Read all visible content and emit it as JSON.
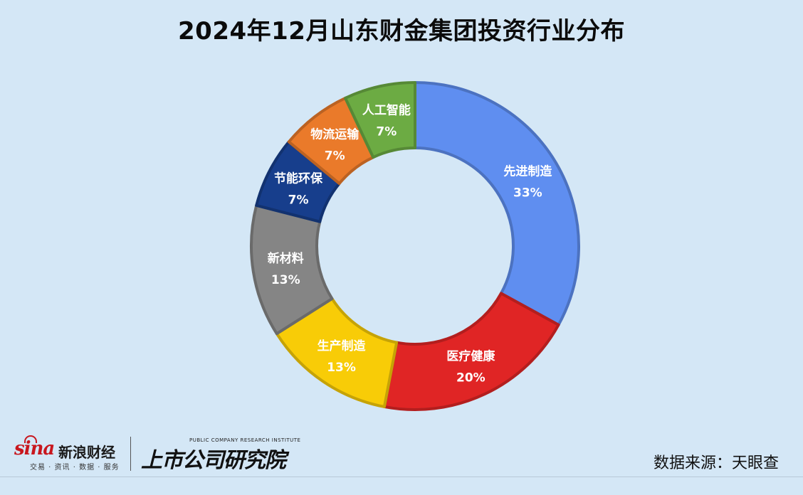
{
  "chart_data": {
    "type": "pie",
    "donut": true,
    "title": "2024年12月山东财金集团投资行业分布",
    "unit": "%",
    "categories": [
      "先进制造",
      "医疗健康",
      "生产制造",
      "新材料",
      "节能环保",
      "物流运输",
      "人工智能"
    ],
    "values": [
      33,
      20,
      13,
      13,
      7,
      7,
      7
    ],
    "labels": [
      "33%",
      "20%",
      "13%",
      "13%",
      "7%",
      "7%",
      "7%"
    ],
    "colors": [
      "#5f8ef0",
      "#e02525",
      "#f8cc07",
      "#858585",
      "#173e8c",
      "#ea7a2a",
      "#6cab43"
    ],
    "start_angle": 0,
    "direction": "clockwise"
  },
  "footer": {
    "source": "数据来源：天眼查",
    "sina_mark": "sina",
    "sina_name": "新浪财经",
    "sina_sub": "交易 · 资讯 · 数据 · 服务",
    "institute_en": "PUBLIC COMPANY RESEARCH INSTITUTE",
    "institute_cn": "上市公司研究院"
  }
}
